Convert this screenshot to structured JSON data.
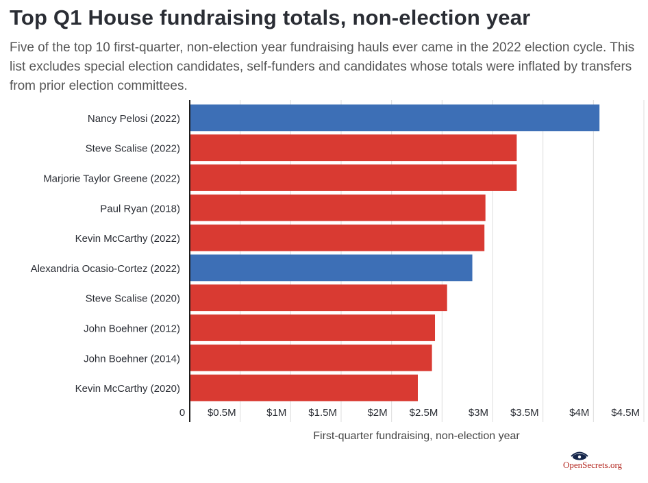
{
  "header": {
    "title": "Top Q1 House fundraising totals, non-election year",
    "subtitle": "Five of the top 10 first-quarter, non-election year fundraising hauls ever came in the 2022 election cycle. This list excludes special election candidates, self-funders and candidates whose totals were inflated by transfers from prior election committees."
  },
  "chart_data": {
    "type": "bar",
    "orientation": "horizontal",
    "title": "Top Q1 House fundraising totals, non-election year",
    "xlabel": "First-quarter fundraising, non-election year",
    "ylabel": "",
    "xlim": [
      0,
      4500000
    ],
    "grid": true,
    "categories": [
      "Nancy Pelosi (2022)",
      "Steve Scalise (2022)",
      "Marjorie Taylor Greene (2022)",
      "Paul Ryan (2018)",
      "Kevin McCarthy (2022)",
      "Alexandria Ocasio-Cortez (2022)",
      "Steve Scalise (2020)",
      "John Boehner (2012)",
      "John Boehner (2014)",
      "Kevin McCarthy (2020)"
    ],
    "values": [
      4060000,
      3240000,
      3240000,
      2930000,
      2920000,
      2800000,
      2550000,
      2430000,
      2400000,
      2260000
    ],
    "party_colors": [
      "#3d6fb6",
      "#d93a32",
      "#d93a32",
      "#d93a32",
      "#d93a32",
      "#3d6fb6",
      "#d93a32",
      "#d93a32",
      "#d93a32",
      "#d93a32"
    ],
    "x_ticks": [
      0,
      500000,
      1000000,
      1500000,
      2000000,
      2500000,
      3000000,
      3500000,
      4000000,
      4500000
    ],
    "x_tick_labels": [
      "0",
      "$0.5M",
      "$1M",
      "$1.5M",
      "$2M",
      "$2.5M",
      "$3M",
      "$3.5M",
      "$4M",
      "$4.5M"
    ]
  },
  "branding": {
    "logo_text": "OpenSecrets.org",
    "logo_icon": "eye-icon",
    "logo_color": "#b3261e"
  }
}
